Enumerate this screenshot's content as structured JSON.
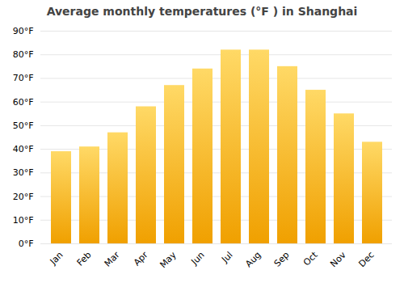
{
  "chart_data": {
    "type": "bar",
    "title": "Average monthly temperatures (°F ) in Shanghai",
    "categories": [
      "Jan",
      "Feb",
      "Mar",
      "Apr",
      "May",
      "Jun",
      "Jul",
      "Aug",
      "Sep",
      "Oct",
      "Nov",
      "Dec"
    ],
    "values": [
      39,
      41,
      47,
      58,
      67,
      74,
      82,
      82,
      75,
      65,
      55,
      43
    ],
    "color": [
      "#F0A000",
      "#FFD966"
    ],
    "ylim": [
      0,
      90
    ],
    "yticks": [
      {
        "value": 0,
        "label": "0°F"
      },
      {
        "value": 10,
        "label": "10°F"
      },
      {
        "value": 20,
        "label": "20°F"
      },
      {
        "value": 30,
        "label": "30°F"
      },
      {
        "value": 40,
        "label": "40°F"
      },
      {
        "value": 50,
        "label": "50°F"
      },
      {
        "value": 60,
        "label": "60°F"
      },
      {
        "value": 70,
        "label": "70°F"
      },
      {
        "value": 80,
        "label": "80°F"
      },
      {
        "value": 90,
        "label": "90°F"
      }
    ],
    "grid": true
  }
}
